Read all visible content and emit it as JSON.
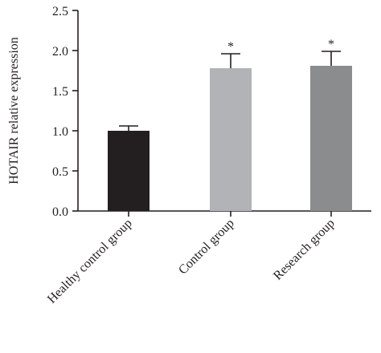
{
  "chart_data": {
    "type": "bar",
    "title": "",
    "ylabel": "HOTAIR relative expression",
    "xlabel": "",
    "ylim": [
      0,
      2.5
    ],
    "yticks": [
      "0.0",
      "0.5",
      "1.0",
      "1.5",
      "2.0",
      "2.5"
    ],
    "categories": [
      "Healthy control group",
      "Control group",
      "Research group"
    ],
    "values": [
      1.0,
      1.78,
      1.81
    ],
    "errors": [
      0.06,
      0.18,
      0.18
    ],
    "annotations": [
      "",
      "*",
      "*"
    ],
    "colors": [
      "#231f20",
      "#b1b3b6",
      "#8a8c8e"
    ],
    "grid": false,
    "legend": "none"
  }
}
